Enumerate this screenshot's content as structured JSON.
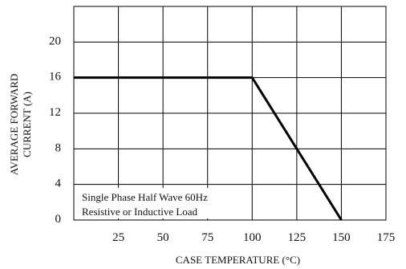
{
  "chart_data": {
    "type": "line",
    "title": "",
    "xlabel": "CASE TEMPERATURE (°C)",
    "ylabel_lines": [
      "AVERAGE FORWARD",
      "CURRENT (A)"
    ],
    "x_ticks": [
      "25",
      "50",
      "75",
      "100",
      "125",
      "150",
      "175"
    ],
    "y_ticks": [
      "0",
      "4",
      "8",
      "12",
      "16",
      "20"
    ],
    "xlim": [
      0,
      175
    ],
    "ylim": [
      0,
      24
    ],
    "grid": true,
    "series": [
      {
        "x": [
          0,
          100,
          150
        ],
        "y": [
          16,
          16,
          0
        ]
      }
    ],
    "annotation_lines": [
      "Single Phase Half Wave 60Hz",
      "Resistive or Inductive Load"
    ],
    "colors": {
      "line": "#000000",
      "grid": "#000000"
    }
  }
}
